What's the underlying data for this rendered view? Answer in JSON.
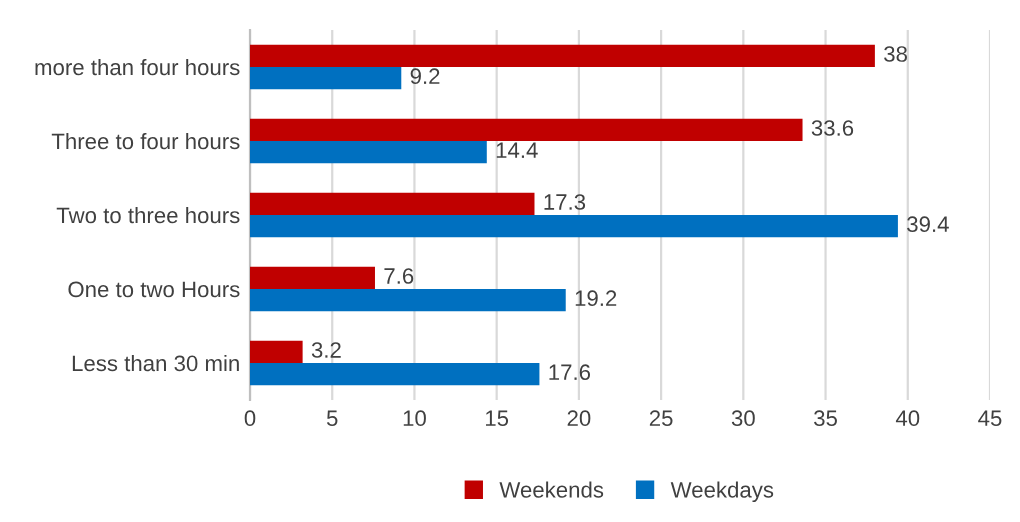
{
  "chart_data": {
    "type": "bar",
    "orientation": "horizontal",
    "categories": [
      "more than four hours",
      "Three to four hours",
      "Two to three hours",
      "One to two Hours",
      "Less than 30 min"
    ],
    "series": [
      {
        "name": "Weekends",
        "color": "#c00000",
        "values": [
          38,
          33.6,
          17.3,
          7.6,
          3.2
        ]
      },
      {
        "name": "Weekdays",
        "color": "#0070c0",
        "values": [
          9.2,
          14.4,
          39.4,
          19.2,
          17.6
        ]
      }
    ],
    "xlim": [
      0,
      45
    ],
    "xticks": [
      0,
      5,
      10,
      15,
      20,
      25,
      30,
      35,
      40,
      45
    ],
    "grid": "x",
    "legend": "bottom",
    "data_labels": true
  }
}
